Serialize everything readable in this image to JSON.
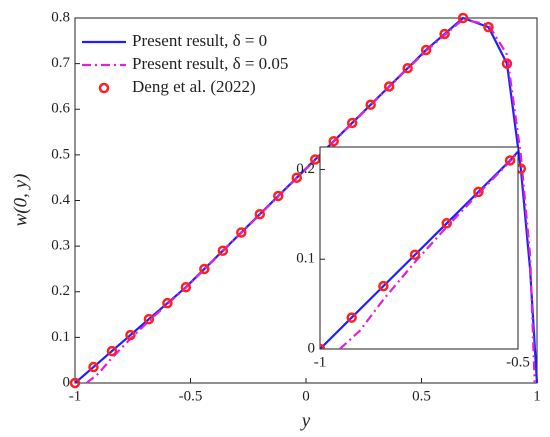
{
  "chart_data": {
    "type": "line",
    "x_label": "y",
    "y_label": "w(0, y)",
    "xlim": [
      -1,
      1
    ],
    "ylim": [
      0,
      0.8
    ],
    "xticks": [
      -1,
      -0.5,
      0,
      0.5,
      1
    ],
    "yticks": [
      0,
      0.1,
      0.2,
      0.3,
      0.4,
      0.5,
      0.6,
      0.7,
      0.8
    ],
    "legend": "upper left",
    "series": [
      {
        "name": "Present result, δ = 0",
        "color": "#1f1fff",
        "style": "solid",
        "x": [
          -1,
          -0.92,
          -0.84,
          -0.76,
          -0.68,
          -0.6,
          -0.52,
          -0.44,
          -0.36,
          -0.28,
          -0.2,
          -0.12,
          -0.04,
          0.04,
          0.12,
          0.2,
          0.28,
          0.36,
          0.44,
          0.52,
          0.6,
          0.68,
          0.79,
          0.87,
          0.93,
          0.97,
          1
        ],
        "values": [
          0,
          0.035,
          0.07,
          0.105,
          0.14,
          0.175,
          0.21,
          0.25,
          0.29,
          0.33,
          0.37,
          0.41,
          0.45,
          0.49,
          0.53,
          0.57,
          0.61,
          0.65,
          0.69,
          0.73,
          0.765,
          0.8,
          0.78,
          0.7,
          0.47,
          0.25,
          0
        ]
      },
      {
        "name": "Present result, δ = 0.05",
        "color": "#e020e0",
        "style": "dashdot",
        "x": [
          -0.95,
          -0.9,
          -0.84,
          -0.76,
          -0.68,
          -0.6,
          -0.52,
          -0.44,
          -0.36,
          -0.28,
          -0.2,
          -0.12,
          -0.04,
          0.04,
          0.12,
          0.2,
          0.28,
          0.36,
          0.44,
          0.52,
          0.6,
          0.68,
          0.79,
          0.87,
          0.93,
          0.97,
          0.99
        ],
        "values": [
          0,
          0.02,
          0.055,
          0.097,
          0.136,
          0.173,
          0.209,
          0.249,
          0.289,
          0.329,
          0.369,
          0.409,
          0.449,
          0.489,
          0.529,
          0.569,
          0.609,
          0.649,
          0.689,
          0.728,
          0.763,
          0.797,
          0.785,
          0.72,
          0.5,
          0.28,
          0
        ]
      },
      {
        "name": "Deng et al. (2022)",
        "color": "#ff2020",
        "style": "markers",
        "x": [
          -1,
          -0.92,
          -0.84,
          -0.76,
          -0.68,
          -0.6,
          -0.52,
          -0.44,
          -0.36,
          -0.28,
          -0.2,
          -0.12,
          -0.04,
          0.04,
          0.12,
          0.2,
          0.28,
          0.36,
          0.44,
          0.52,
          0.6,
          0.68,
          0.79,
          0.87,
          0.93
        ],
        "values": [
          0,
          0.035,
          0.07,
          0.105,
          0.14,
          0.175,
          0.21,
          0.25,
          0.29,
          0.33,
          0.37,
          0.41,
          0.45,
          0.49,
          0.53,
          0.57,
          0.61,
          0.65,
          0.69,
          0.73,
          0.765,
          0.8,
          0.78,
          0.7,
          0.47
        ]
      }
    ],
    "inset": {
      "xlim": [
        -1,
        -0.5
      ],
      "ylim": [
        0,
        0.225
      ],
      "xticks": [
        -1,
        -0.5
      ],
      "yticks": [
        0,
        0.1,
        0.2
      ]
    }
  }
}
